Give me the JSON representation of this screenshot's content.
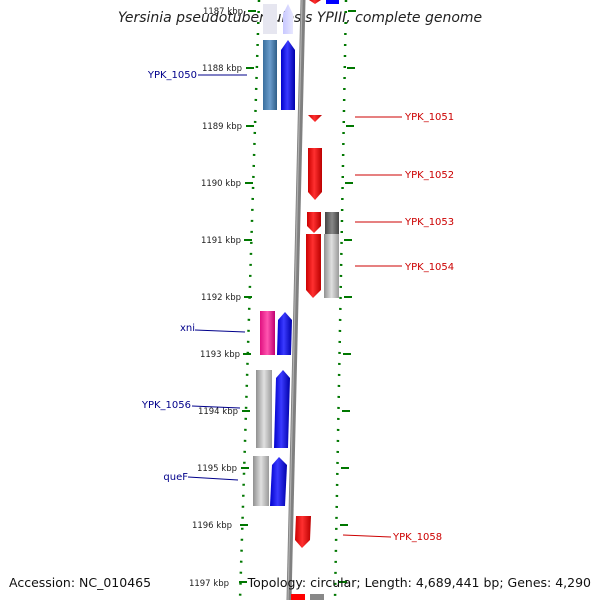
{
  "title": "Yersinia pseudotuberculosis YPIII, complete genome",
  "accession": "Accession: NC_010465",
  "topology": "Topology: circular; Length: 4,689,441 bp; Genes: 4,290",
  "ruler": {
    "labels": [
      "1187 kbp",
      "1188 kbp",
      "1189 kbp",
      "1190 kbp",
      "1191 kbp",
      "1192 kbp",
      "1193 kbp",
      "1194 kbp",
      "1195 kbp",
      "1196 kbp",
      "1197 kbp"
    ]
  },
  "gene_labels": {
    "ypk1050": "YPK_1050",
    "ypk1051": "YPK_1051",
    "ypk1052": "YPK_1052",
    "ypk1053": "YPK_1053",
    "ypk1054": "YPK_1054",
    "xni": "xni",
    "ypk1056": "YPK_1056",
    "quef": "queF",
    "ypk1058": "YPK_1058"
  },
  "colors": {
    "forward_gene": "#0000ff",
    "reverse_gene": "#ff0000",
    "cds_steel": "#4682b4",
    "cds_magenta": "#ff1493",
    "cds_gray": "#a9a9a9",
    "label_left": "#00008b",
    "label_right": "#cc0000",
    "tick_green": "#007700",
    "backbone": "#808080"
  }
}
